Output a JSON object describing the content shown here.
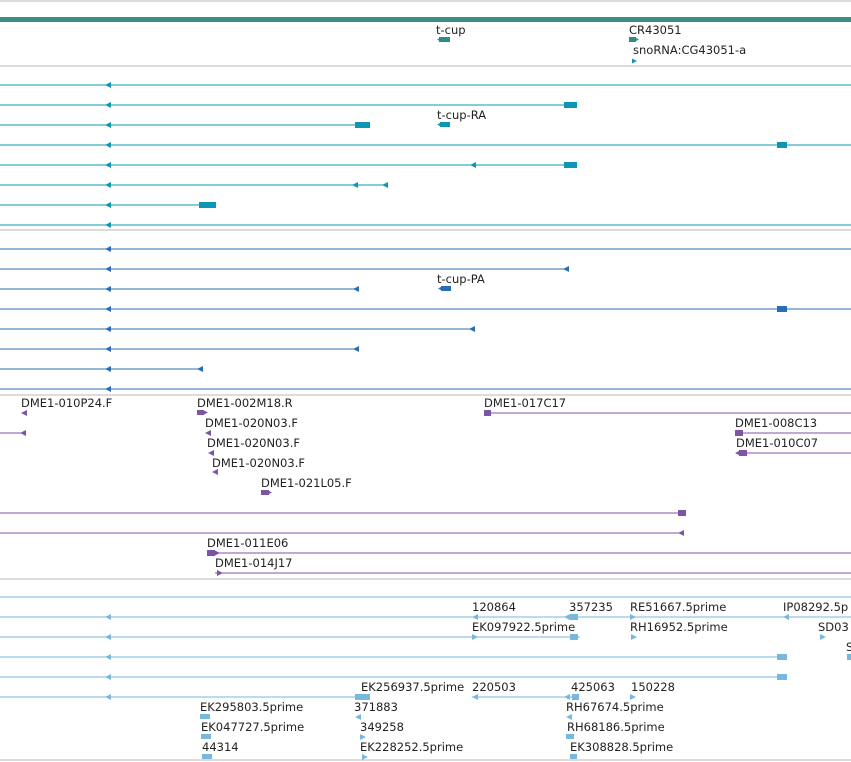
{
  "colors": {
    "gene": "#2e8b87",
    "gene_track_bar": "#3a8d88",
    "transcript": "#0f96b5",
    "protein": "#2a6db7",
    "clone": "#7d55a6",
    "est": "#77b9dd",
    "separator": "#b9b9b9",
    "label": "#222222"
  },
  "tracks": {
    "genes": {
      "labels": [
        "t-cup",
        "CR43051",
        "snoRNA:CG43051-a"
      ]
    },
    "transcripts": {
      "labels": [
        "t-cup-RA"
      ]
    },
    "proteins": {
      "labels": [
        "t-cup-PA"
      ]
    },
    "clones": {
      "labels": [
        "DME1-010P24.F",
        "DME1-002M18.R",
        "DME1-017C17",
        "DME1-020N03.F",
        "DME1-008C13",
        "DME1-020N03.F",
        "DME1-010C07",
        "DME1-020N03.F",
        "DME1-021L05.F",
        "DME1-011E06",
        "DME1-014J17"
      ]
    },
    "ests": {
      "labels": [
        "120864",
        "357235",
        "RE51667.5prime",
        "IP08292.5p",
        "EK097922.5prime",
        "RH16952.5prime",
        "SD03",
        "S",
        "EK256937.5prime",
        "220503",
        "425063",
        "150228",
        "EK295803.5prime",
        "371883",
        "RH67674.5prime",
        "EK047727.5prime",
        "349258",
        "RH68186.5prime",
        "44314",
        "EK228252.5prime",
        "EK308828.5prime"
      ]
    }
  }
}
